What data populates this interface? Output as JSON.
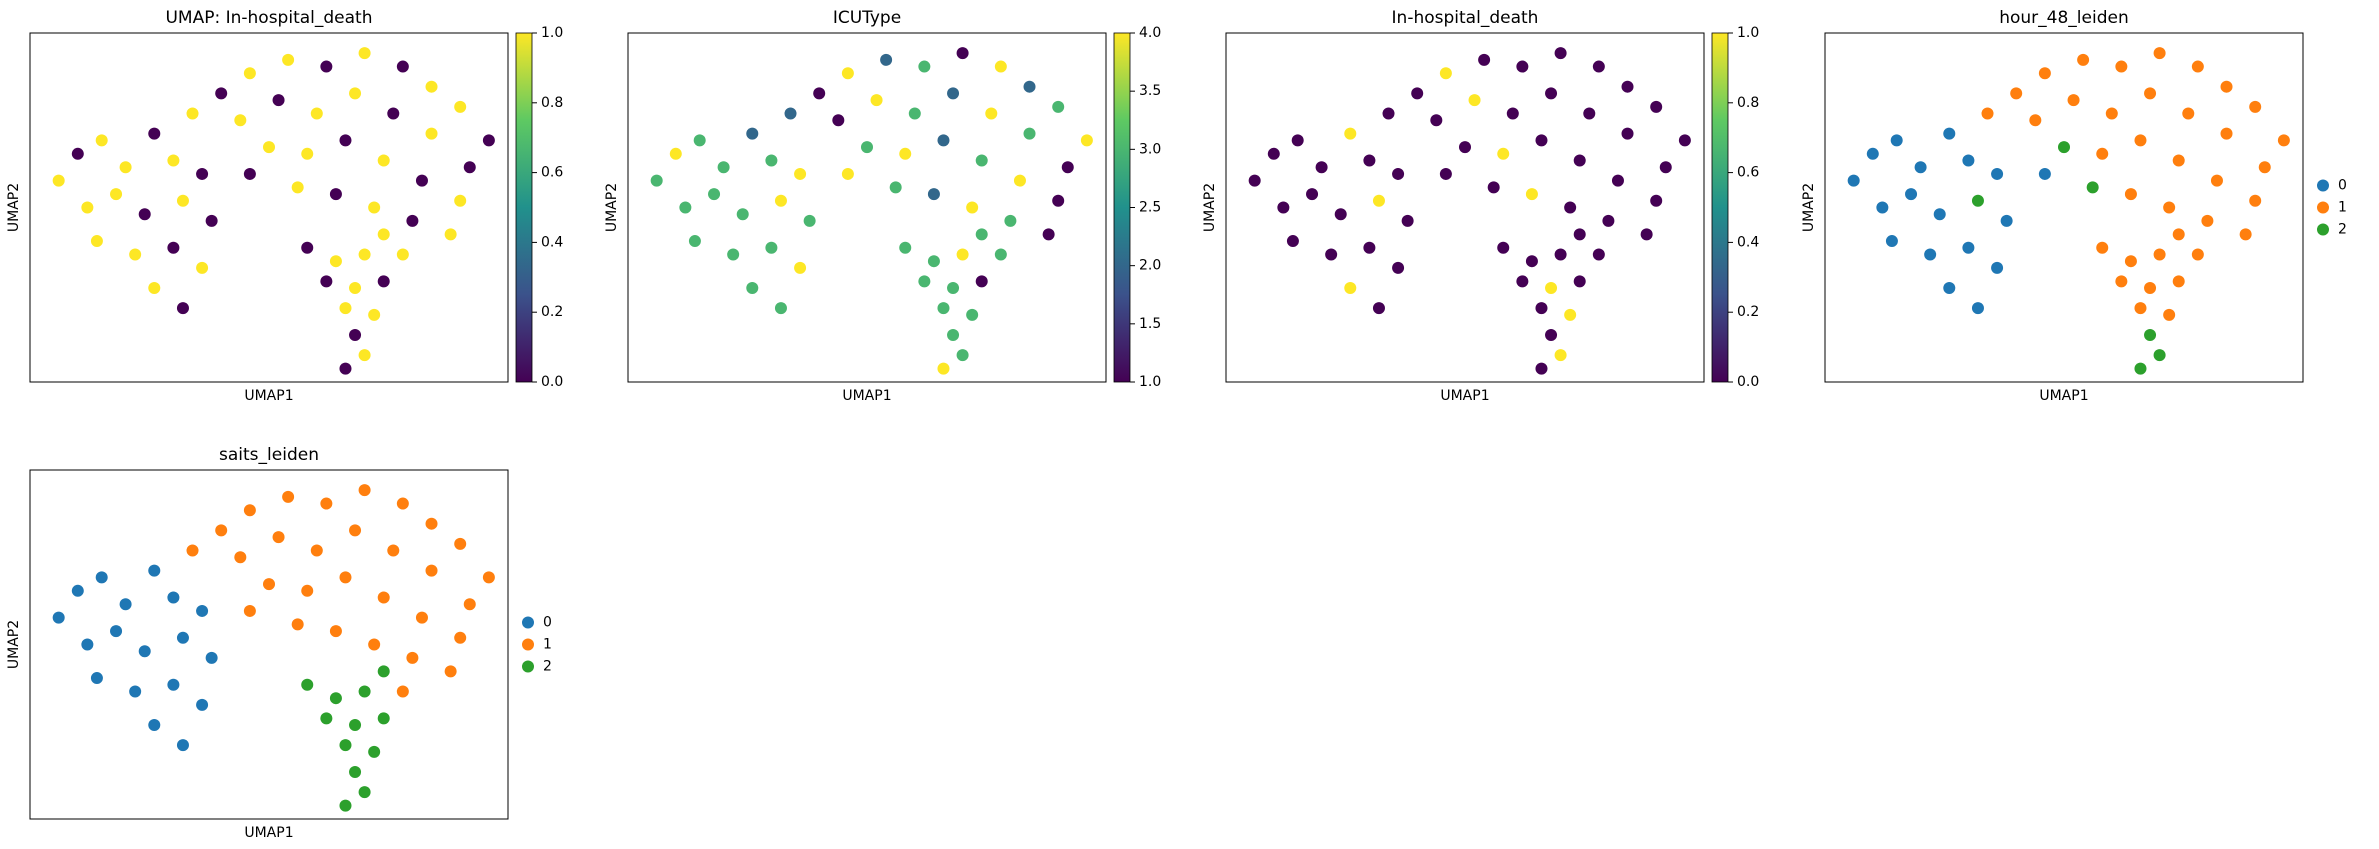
{
  "chart_data": [
    {
      "type": "scatter",
      "title": "UMAP: In-hospital_death",
      "xlabel": "UMAP1",
      "ylabel": "UMAP2",
      "xlim": [
        0,
        10
      ],
      "ylim": [
        0,
        10.4
      ],
      "x": [
        0.6,
        1.0,
        1.5,
        2.0,
        2.6,
        3.0,
        3.6,
        1.2,
        1.8,
        2.4,
        3.2,
        3.8,
        1.4,
        2.2,
        3.0,
        3.6,
        2.6,
        3.2,
        3.4,
        4.0,
        4.6,
        5.4,
        6.2,
        7.0,
        7.8,
        8.4,
        9.0,
        9.6,
        4.4,
        5.2,
        6.0,
        6.8,
        7.6,
        8.4,
        9.2,
        5.0,
        5.8,
        6.6,
        7.4,
        8.2,
        9.0,
        5.6,
        6.4,
        7.2,
        8.0,
        8.8,
        4.6,
        7.8,
        5.8,
        6.4,
        7.0,
        6.2,
        6.8,
        7.4,
        6.6,
        7.2,
        6.8,
        7.0,
        6.6,
        7.4
      ],
      "y": [
        6.0,
        6.8,
        7.2,
        6.4,
        7.4,
        6.6,
        6.2,
        5.2,
        5.6,
        5.0,
        5.4,
        4.8,
        4.2,
        3.8,
        4.0,
        3.4,
        2.8,
        2.2,
        8.0,
        8.6,
        9.2,
        9.6,
        9.4,
        9.8,
        9.4,
        8.8,
        8.2,
        7.2,
        7.8,
        8.4,
        8.0,
        8.6,
        8.0,
        7.4,
        6.4,
        7.0,
        6.8,
        7.2,
        6.6,
        6.0,
        5.4,
        5.8,
        5.6,
        5.2,
        4.8,
        4.4,
        6.2,
        3.8,
        4.0,
        3.6,
        3.8,
        3.0,
        2.8,
        3.0,
        2.2,
        2.0,
        1.4,
        0.8,
        0.4,
        4.4
      ],
      "c": [
        1,
        0,
        1,
        1,
        0,
        1,
        0,
        1,
        1,
        0,
        1,
        0,
        1,
        1,
        0,
        1,
        1,
        0,
        1,
        0,
        1,
        1,
        0,
        1,
        0,
        1,
        1,
        0,
        1,
        0,
        1,
        1,
        0,
        1,
        0,
        1,
        1,
        0,
        1,
        0,
        1,
        1,
        0,
        1,
        0,
        1,
        0,
        1,
        0,
        1,
        1,
        0,
        1,
        0,
        1,
        1,
        0,
        1,
        0,
        1
      ],
      "clim": [
        0,
        1
      ],
      "cmap": [
        "#440154",
        "#3b528b",
        "#21918c",
        "#5ec962",
        "#fde725"
      ],
      "cticks": [
        {
          "value": 0,
          "label": "0.0"
        },
        {
          "value": 0.2,
          "label": "0.2"
        },
        {
          "value": 0.4,
          "label": "0.4"
        },
        {
          "value": 0.6,
          "label": "0.6"
        },
        {
          "value": 0.8,
          "label": "0.8"
        },
        {
          "value": 1,
          "label": "1.0"
        }
      ]
    },
    {
      "type": "scatter",
      "title": "ICUType",
      "xlabel": "UMAP1",
      "ylabel": "UMAP2",
      "xlim": [
        0,
        10
      ],
      "ylim": [
        0,
        10.4
      ],
      "x": [
        0.6,
        1.0,
        1.5,
        2.0,
        2.6,
        3.0,
        3.6,
        1.2,
        1.8,
        2.4,
        3.2,
        3.8,
        1.4,
        2.2,
        3.0,
        3.6,
        2.6,
        3.2,
        3.4,
        4.0,
        4.6,
        5.4,
        6.2,
        7.0,
        7.8,
        8.4,
        9.0,
        9.6,
        4.4,
        5.2,
        6.0,
        6.8,
        7.6,
        8.4,
        9.2,
        5.0,
        5.8,
        6.6,
        7.4,
        8.2,
        9.0,
        5.6,
        6.4,
        7.2,
        8.0,
        8.8,
        4.6,
        7.8,
        5.8,
        6.4,
        7.0,
        6.2,
        6.8,
        7.4,
        6.6,
        7.2,
        6.8,
        7.0,
        6.6,
        7.4
      ],
      "y": [
        6.0,
        6.8,
        7.2,
        6.4,
        7.4,
        6.6,
        6.2,
        5.2,
        5.6,
        5.0,
        5.4,
        4.8,
        4.2,
        3.8,
        4.0,
        3.4,
        2.8,
        2.2,
        8.0,
        8.6,
        9.2,
        9.6,
        9.4,
        9.8,
        9.4,
        8.8,
        8.2,
        7.2,
        7.8,
        8.4,
        8.0,
        8.6,
        8.0,
        7.4,
        6.4,
        7.0,
        6.8,
        7.2,
        6.6,
        6.0,
        5.4,
        5.8,
        5.6,
        5.2,
        4.8,
        4.4,
        6.2,
        3.8,
        4.0,
        3.6,
        3.8,
        3.0,
        2.8,
        3.0,
        2.2,
        2.0,
        1.4,
        0.8,
        0.4,
        4.4
      ],
      "c": [
        3,
        4,
        3,
        3,
        2,
        3,
        4,
        3,
        3,
        3,
        4,
        3,
        3,
        3,
        3,
        4,
        3,
        3,
        2,
        1,
        4,
        2,
        3,
        1,
        4,
        2,
        3,
        4,
        1,
        4,
        3,
        2,
        4,
        3,
        1,
        3,
        4,
        2,
        3,
        4,
        1,
        3,
        2,
        4,
        3,
        1,
        4,
        3,
        3,
        3,
        4,
        3,
        3,
        1,
        3,
        3,
        3,
        3,
        4,
        3
      ],
      "clim": [
        1,
        4
      ],
      "cmap": [
        "#440154",
        "#3b528b",
        "#21918c",
        "#5ec962",
        "#fde725"
      ],
      "cticks": [
        {
          "value": 1,
          "label": "1.0"
        },
        {
          "value": 1.5,
          "label": "1.5"
        },
        {
          "value": 2,
          "label": "2.0"
        },
        {
          "value": 2.5,
          "label": "2.5"
        },
        {
          "value": 3,
          "label": "3.0"
        },
        {
          "value": 3.5,
          "label": "3.5"
        },
        {
          "value": 4,
          "label": "4.0"
        }
      ]
    },
    {
      "type": "scatter",
      "title": "In-hospital_death",
      "xlabel": "UMAP1",
      "ylabel": "UMAP2",
      "xlim": [
        0,
        10
      ],
      "ylim": [
        0,
        10.4
      ],
      "x": [
        0.6,
        1.0,
        1.5,
        2.0,
        2.6,
        3.0,
        3.6,
        1.2,
        1.8,
        2.4,
        3.2,
        3.8,
        1.4,
        2.2,
        3.0,
        3.6,
        2.6,
        3.2,
        3.4,
        4.0,
        4.6,
        5.4,
        6.2,
        7.0,
        7.8,
        8.4,
        9.0,
        9.6,
        4.4,
        5.2,
        6.0,
        6.8,
        7.6,
        8.4,
        9.2,
        5.0,
        5.8,
        6.6,
        7.4,
        8.2,
        9.0,
        5.6,
        6.4,
        7.2,
        8.0,
        8.8,
        4.6,
        7.8,
        5.8,
        6.4,
        7.0,
        6.2,
        6.8,
        7.4,
        6.6,
        7.2,
        6.8,
        7.0,
        6.6,
        7.4
      ],
      "y": [
        6.0,
        6.8,
        7.2,
        6.4,
        7.4,
        6.6,
        6.2,
        5.2,
        5.6,
        5.0,
        5.4,
        4.8,
        4.2,
        3.8,
        4.0,
        3.4,
        2.8,
        2.2,
        8.0,
        8.6,
        9.2,
        9.6,
        9.4,
        9.8,
        9.4,
        8.8,
        8.2,
        7.2,
        7.8,
        8.4,
        8.0,
        8.6,
        8.0,
        7.4,
        6.4,
        7.0,
        6.8,
        7.2,
        6.6,
        6.0,
        5.4,
        5.8,
        5.6,
        5.2,
        4.8,
        4.4,
        6.2,
        3.8,
        4.0,
        3.6,
        3.8,
        3.0,
        2.8,
        3.0,
        2.2,
        2.0,
        1.4,
        0.8,
        0.4,
        4.4
      ],
      "c": [
        0,
        0,
        0,
        0,
        1,
        0,
        0,
        0,
        0,
        0,
        1,
        0,
        0,
        0,
        0,
        0,
        1,
        0,
        0,
        0,
        1,
        0,
        0,
        0,
        0,
        0,
        0,
        0,
        0,
        1,
        0,
        0,
        0,
        0,
        0,
        0,
        1,
        0,
        0,
        0,
        0,
        0,
        1,
        0,
        0,
        0,
        0,
        0,
        0,
        0,
        0,
        0,
        1,
        0,
        0,
        1,
        0,
        1,
        0,
        0
      ],
      "clim": [
        0,
        1
      ],
      "cmap": [
        "#440154",
        "#3b528b",
        "#21918c",
        "#5ec962",
        "#fde725"
      ],
      "cticks": [
        {
          "value": 0,
          "label": "0.0"
        },
        {
          "value": 0.2,
          "label": "0.2"
        },
        {
          "value": 0.4,
          "label": "0.4"
        },
        {
          "value": 0.6,
          "label": "0.6"
        },
        {
          "value": 0.8,
          "label": "0.8"
        },
        {
          "value": 1,
          "label": "1.0"
        }
      ]
    },
    {
      "type": "category_scatter",
      "title": "hour_48_leiden",
      "xlabel": "UMAP1",
      "ylabel": "UMAP2",
      "xlim": [
        0,
        10
      ],
      "ylim": [
        0,
        10.4
      ],
      "series": [
        {
          "name": "0",
          "color": "#1f77b4",
          "x": [
            0.6,
            1.0,
            1.5,
            2.0,
            2.6,
            3.0,
            3.6,
            1.2,
            1.8,
            2.4,
            3.8,
            1.4,
            2.2,
            3.0,
            3.6,
            2.6,
            3.2,
            4.6
          ],
          "y": [
            6.0,
            6.8,
            7.2,
            6.4,
            7.4,
            6.6,
            6.2,
            5.2,
            5.6,
            5.0,
            4.8,
            4.2,
            3.8,
            4.0,
            3.4,
            2.8,
            2.2,
            6.2
          ]
        },
        {
          "name": "1",
          "color": "#ff7f0e",
          "x": [
            3.4,
            4.0,
            4.6,
            5.4,
            6.2,
            7.0,
            7.8,
            8.4,
            9.0,
            9.6,
            4.4,
            5.2,
            6.0,
            6.8,
            7.6,
            8.4,
            9.2,
            5.8,
            6.6,
            7.4,
            8.2,
            9.0,
            6.4,
            7.2,
            8.0,
            8.8,
            7.8,
            5.8,
            6.4,
            7.0,
            6.2,
            6.8,
            7.4,
            6.6,
            7.2,
            7.4
          ],
          "y": [
            8.0,
            8.6,
            9.2,
            9.6,
            9.4,
            9.8,
            9.4,
            8.8,
            8.2,
            7.2,
            7.8,
            8.4,
            8.0,
            8.6,
            8.0,
            7.4,
            6.4,
            6.8,
            7.2,
            6.6,
            6.0,
            5.4,
            5.6,
            5.2,
            4.8,
            4.4,
            3.8,
            4.0,
            3.6,
            3.8,
            3.0,
            2.8,
            3.0,
            2.2,
            2.0,
            4.4
          ]
        },
        {
          "name": "2",
          "color": "#2ca02c",
          "x": [
            3.2,
            5.0,
            5.6,
            6.8,
            7.0,
            6.6
          ],
          "y": [
            5.4,
            7.0,
            5.8,
            1.4,
            0.8,
            0.4
          ]
        }
      ]
    },
    {
      "type": "category_scatter",
      "title": "saits_leiden",
      "xlabel": "UMAP1",
      "ylabel": "UMAP2",
      "xlim": [
        0,
        10
      ],
      "ylim": [
        0,
        10.4
      ],
      "series": [
        {
          "name": "0",
          "color": "#1f77b4",
          "x": [
            0.6,
            1.0,
            1.5,
            2.0,
            2.6,
            3.0,
            3.6,
            1.2,
            1.8,
            2.4,
            3.2,
            3.8,
            1.4,
            2.2,
            3.0,
            3.6,
            2.6,
            3.2
          ],
          "y": [
            6.0,
            6.8,
            7.2,
            6.4,
            7.4,
            6.6,
            6.2,
            5.2,
            5.6,
            5.0,
            5.4,
            4.8,
            4.2,
            3.8,
            4.0,
            3.4,
            2.8,
            2.2
          ]
        },
        {
          "name": "1",
          "color": "#ff7f0e",
          "x": [
            3.4,
            4.0,
            4.6,
            5.4,
            6.2,
            7.0,
            7.8,
            8.4,
            9.0,
            9.6,
            4.4,
            5.2,
            6.0,
            6.8,
            7.6,
            8.4,
            9.2,
            5.0,
            5.8,
            6.6,
            7.4,
            8.2,
            9.0,
            5.6,
            6.4,
            7.2,
            8.0,
            8.8,
            4.6,
            7.8
          ],
          "y": [
            8.0,
            8.6,
            9.2,
            9.6,
            9.4,
            9.8,
            9.4,
            8.8,
            8.2,
            7.2,
            7.8,
            8.4,
            8.0,
            8.6,
            8.0,
            7.4,
            6.4,
            7.0,
            6.8,
            7.2,
            6.6,
            6.0,
            5.4,
            5.8,
            5.6,
            5.2,
            4.8,
            4.4,
            6.2,
            3.8
          ]
        },
        {
          "name": "2",
          "color": "#2ca02c",
          "x": [
            5.8,
            6.4,
            7.0,
            6.2,
            6.8,
            7.4,
            6.6,
            7.2,
            6.8,
            7.0,
            6.6,
            7.4
          ],
          "y": [
            4.0,
            3.6,
            3.8,
            3.0,
            2.8,
            3.0,
            2.2,
            2.0,
            1.4,
            0.8,
            0.4,
            4.4
          ]
        }
      ]
    }
  ]
}
